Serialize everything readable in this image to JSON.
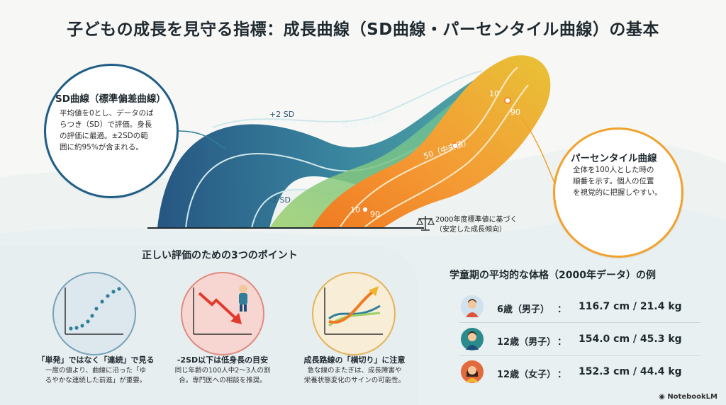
{
  "title": "子どもの成長を見守る指標：成長曲線（SD曲線・パーセンタイル曲線）の基本",
  "sd_bubble": {
    "title": "SD曲線（標準偏差曲線）",
    "lines": [
      "平均値を0とし、データのば",
      "らつき（SD）で評価。身長",
      "の評価に最適。±2SDの範",
      "囲に約95%が含まれる。"
    ]
  },
  "percentile_bubble": {
    "title": "パーセンタイル曲線",
    "lines": [
      "全体を100人とした時の",
      "順番を示す。個人の位置",
      "を視覚的に把握しやすい。"
    ]
  },
  "curve_labels": {
    "plus2sd": "+2 SD",
    "mean": "平均（0 SD）",
    "minus2sd": "-2 SD",
    "p10_top": "10",
    "p90_top": "90",
    "p50": "50（中央値）",
    "p10_bottom": "10",
    "p90_bottom": "90"
  },
  "standard_note": [
    "2000年度標準値に基づく",
    "（安定した成長傾向）"
  ],
  "points": {
    "heading": "正しい評価のための3つのポイント",
    "cards": [
      {
        "title": "「単発」ではなく「連続」で見る",
        "lines": [
          "一度の値より、曲線に沿った「ゆ",
          "るやかな連続した前進」が重要。"
        ]
      },
      {
        "title": "-2SD以下は低身長の目安",
        "lines": [
          "同じ年齢の100人中2〜3人の割",
          "合。専門医への相談を推奨。"
        ]
      },
      {
        "title": "成長路線の「横切り」に注意",
        "lines": [
          "急な線のまたぎは、成長障害や",
          "栄養状態変化のサインの可能性。"
        ]
      }
    ]
  },
  "average_body": {
    "heading": "学童期の平均的な体格（2000年データ）の例",
    "rows": [
      {
        "label": "6歳（男子）",
        "colon": "：",
        "value": "116.7 cm / 21.4 kg"
      },
      {
        "label": "12歳（男子）",
        "colon": "：",
        "value": "154.0 cm / 45.3 kg"
      },
      {
        "label": "12歳（女子）",
        "colon": "：",
        "value": "152.3 cm / 44.4 kg"
      }
    ]
  },
  "brand": "NotebookLM",
  "colors": {
    "sd_blue": "#1f5e86",
    "teal": "#2a8a8c",
    "percentile_orange": "#f2a12d",
    "red_circle": "#f7d6d2",
    "blue_circle": "#dde8ee",
    "yellow_circle": "#f8edd6"
  }
}
